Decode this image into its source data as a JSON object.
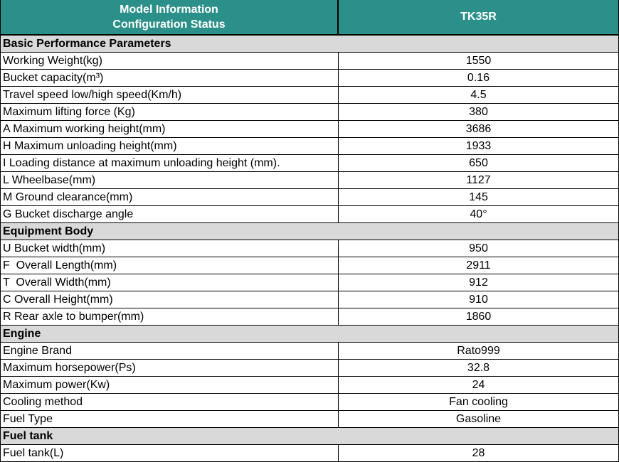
{
  "table": {
    "colors": {
      "header_bg": "#2b9089",
      "header_text": "#ffffff",
      "section_bg": "#d9d9d9",
      "row_bg": "#ffffff",
      "text": "#000000",
      "border": "#000000"
    },
    "header": {
      "left_line1": "Model Information",
      "left_line2": "Configuration Status",
      "model_name": "TK35R"
    },
    "sections": [
      {
        "title": "Basic Performance Parameters",
        "rows": [
          {
            "label": "Working Weight(kg)",
            "value": "1550"
          },
          {
            "label": "Bucket capacity(m³)",
            "value": "0.16"
          },
          {
            "label": "Travel speed low/high speed(Km/h)",
            "value": "4.5"
          },
          {
            "label": "Maximum lifting force (Kg)",
            "value": "380"
          },
          {
            "label": "A Maximum working height(mm)",
            "value": "3686"
          },
          {
            "label": "H Maximum unloading height(mm)",
            "value": "1933"
          },
          {
            "label": "I Loading distance at maximum unloading height (mm).",
            "value": "650"
          },
          {
            "label": "L Wheelbase(mm)",
            "value": "1127"
          },
          {
            "label": "M Ground clearance(mm)",
            "value": "145"
          },
          {
            "label": "G Bucket discharge angle",
            "value": "40°"
          }
        ]
      },
      {
        "title": "Equipment Body",
        "rows": [
          {
            "label": "U Bucket width(mm)",
            "value": "950"
          },
          {
            "label": "F  Overall Length(mm)",
            "value": "2911"
          },
          {
            "label": "T  Overall Width(mm)",
            "value": "912"
          },
          {
            "label": "C Overall Height(mm)",
            "value": "910"
          },
          {
            "label": "R Rear axle to bumper(mm)",
            "value": "1860"
          }
        ]
      },
      {
        "title": "Engine",
        "rows": [
          {
            "label": "Engine Brand",
            "value": "Rato999"
          },
          {
            "label": "Maximum horsepower(Ps)",
            "value": "32.8"
          },
          {
            "label": "Maximum power(Kw)",
            "value": "24"
          },
          {
            "label": "Cooling method",
            "value": "Fan cooling"
          },
          {
            "label": "Fuel Type",
            "value": "Gasoline"
          }
        ]
      },
      {
        "title": "Fuel tank",
        "rows": [
          {
            "label": "Fuel tank(L)",
            "value": "28"
          }
        ]
      }
    ]
  }
}
